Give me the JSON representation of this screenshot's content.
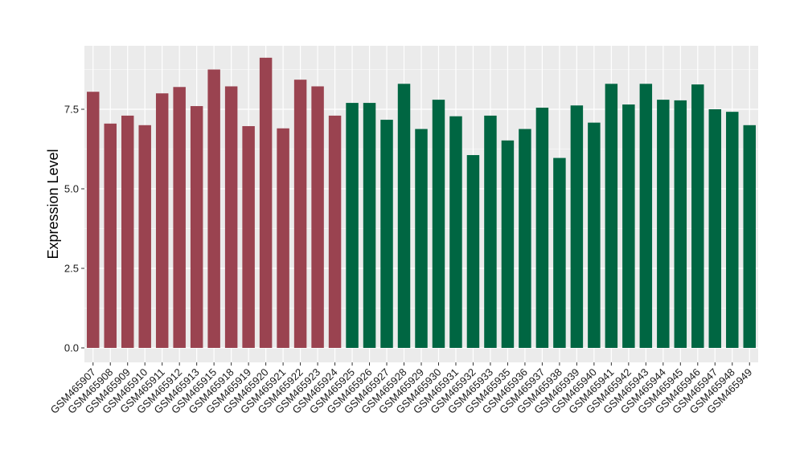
{
  "chart_data": {
    "type": "bar",
    "title": "",
    "xlabel": "",
    "ylabel": "Expression Level",
    "ylim": [
      -0.3,
      9.6
    ],
    "yticks": [
      0.0,
      2.5,
      5.0,
      7.5
    ],
    "ytick_labels": [
      "0.0",
      "2.5",
      "5.0",
      "7.5"
    ],
    "grid": true,
    "legend": "none",
    "colors": {
      "group1": "#9a4350",
      "group2": "#006642",
      "panel": "#ebebeb",
      "grid": "#ffffff"
    },
    "categories": [
      "GSM465907",
      "GSM465908",
      "GSM465909",
      "GSM465910",
      "GSM465911",
      "GSM465912",
      "GSM465913",
      "GSM465915",
      "GSM465918",
      "GSM465919",
      "GSM465920",
      "GSM465921",
      "GSM465922",
      "GSM465923",
      "GSM465924",
      "GSM465925",
      "GSM465926",
      "GSM465927",
      "GSM465928",
      "GSM465929",
      "GSM465930",
      "GSM465931",
      "GSM465932",
      "GSM465933",
      "GSM465935",
      "GSM465936",
      "GSM465937",
      "GSM465938",
      "GSM465939",
      "GSM465940",
      "GSM465941",
      "GSM465942",
      "GSM465943",
      "GSM465944",
      "GSM465945",
      "GSM465946",
      "GSM465947",
      "GSM465948",
      "GSM465949"
    ],
    "values": [
      8.05,
      7.05,
      7.3,
      7.0,
      8.0,
      8.2,
      7.6,
      8.75,
      8.22,
      6.97,
      9.12,
      6.9,
      8.43,
      8.22,
      7.3,
      7.7,
      7.7,
      7.17,
      8.3,
      6.88,
      7.8,
      7.28,
      6.06,
      7.3,
      6.52,
      6.88,
      7.55,
      5.97,
      7.62,
      7.08,
      8.3,
      7.65,
      8.3,
      7.8,
      7.78,
      8.28,
      7.5,
      7.42,
      7.0
    ],
    "groups": [
      1,
      1,
      1,
      1,
      1,
      1,
      1,
      1,
      1,
      1,
      1,
      1,
      1,
      1,
      1,
      2,
      2,
      2,
      2,
      2,
      2,
      2,
      2,
      2,
      2,
      2,
      2,
      2,
      2,
      2,
      2,
      2,
      2,
      2,
      2,
      2,
      2,
      2,
      2
    ]
  }
}
